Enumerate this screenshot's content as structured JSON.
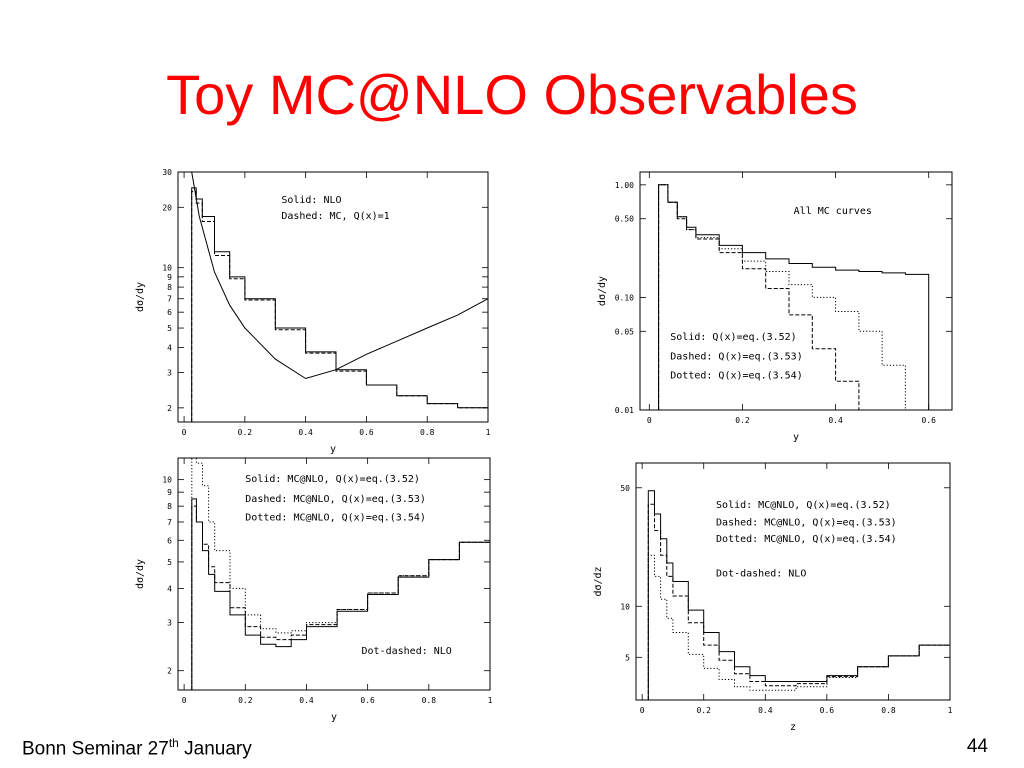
{
  "slide": {
    "title": "Toy MC@NLO Observables",
    "footer_left_main": "Bonn Seminar 27",
    "footer_left_sup": "th",
    "footer_left_tail": " January",
    "page_number": "44",
    "title_color": "#ff0000"
  },
  "chart_data": [
    {
      "type": "line",
      "xlabel": "y",
      "ylabel": "dσ/dy",
      "xlim": [
        -0.02,
        1.0
      ],
      "ylim": [
        1.7,
        30
      ],
      "yscale": "log",
      "xticks": [
        0,
        0.2,
        0.4,
        0.6,
        0.8,
        1
      ],
      "xtick_labels": [
        "0",
        "0.2",
        "0.4",
        "0.6",
        "0.8",
        "1"
      ],
      "yticks": [
        2,
        3,
        4,
        5,
        6,
        7,
        8,
        9,
        10,
        20,
        30
      ],
      "ytick_labels": [
        "2",
        "3",
        "4",
        "5",
        "6",
        "7",
        "8",
        "9",
        "10",
        "20",
        "30"
      ],
      "annotations": [
        "Solid: NLO",
        "Dashed: MC, Q(x)=1"
      ],
      "annotation_x": 0.32,
      "annotation_y": 21,
      "series": [
        {
          "style": "solid",
          "x": [
            0.025,
            0.05,
            0.1,
            0.15,
            0.2,
            0.3,
            0.4,
            0.5,
            0.6,
            0.7,
            0.8,
            0.9,
            1.0
          ],
          "y": [
            30,
            18,
            9.5,
            6.5,
            5.0,
            3.5,
            2.8,
            3.1,
            3.7,
            4.3,
            5.0,
            5.8,
            7.0
          ]
        },
        {
          "style": "step",
          "x": [
            0.025,
            0.04,
            0.06,
            0.1,
            0.15,
            0.2,
            0.3,
            0.4,
            0.5,
            0.6,
            0.7,
            0.8,
            0.9,
            1.0
          ],
          "y": [
            25,
            22,
            18,
            12,
            9.0,
            7.0,
            5.0,
            3.8,
            3.1,
            2.6,
            2.3,
            2.1,
            2.0,
            1.9
          ]
        },
        {
          "style": "step-dashed",
          "x": [
            0.025,
            0.04,
            0.06,
            0.1,
            0.15,
            0.2,
            0.3,
            0.4,
            0.5,
            0.6,
            0.7,
            0.8,
            0.9,
            1.0
          ],
          "y": [
            24,
            21,
            17,
            11.5,
            8.8,
            6.9,
            4.9,
            3.75,
            3.05,
            2.6,
            2.3,
            2.1,
            2.0,
            1.9
          ]
        }
      ]
    },
    {
      "type": "line",
      "xlabel": "y",
      "ylabel": "dσ/dy",
      "xlim": [
        -0.02,
        0.65
      ],
      "ylim": [
        0.01,
        1.3
      ],
      "yscale": "log",
      "xticks": [
        0,
        0.2,
        0.4,
        0.6
      ],
      "xtick_labels": [
        "0",
        "0.2",
        "0.4",
        "0.6"
      ],
      "yticks": [
        0.01,
        0.05,
        0.1,
        0.5,
        1.0
      ],
      "ytick_labels": [
        "0.01",
        "0.05",
        "0.10",
        "0.50",
        "1.00"
      ],
      "annotations": [
        "All MC curves",
        "Solid: Q(x)=eq.(3.52)",
        "Dashed: Q(x)=eq.(3.53)",
        "Dotted: Q(x)=eq.(3.54)"
      ],
      "annotation_positions": [
        [
          0.31,
          0.55
        ],
        [
          0.045,
          0.042
        ],
        [
          0.045,
          0.028
        ],
        [
          0.045,
          0.019
        ]
      ],
      "series": [
        {
          "style": "step",
          "x": [
            0.02,
            0.04,
            0.06,
            0.08,
            0.1,
            0.15,
            0.2,
            0.25,
            0.3,
            0.35,
            0.4,
            0.45,
            0.5,
            0.55,
            0.6
          ],
          "y": [
            1.0,
            0.7,
            0.52,
            0.42,
            0.36,
            0.29,
            0.25,
            0.22,
            0.2,
            0.185,
            0.175,
            0.17,
            0.165,
            0.16,
            0.01
          ]
        },
        {
          "style": "step-dashed",
          "x": [
            0.02,
            0.04,
            0.06,
            0.08,
            0.1,
            0.15,
            0.2,
            0.25,
            0.3,
            0.35,
            0.4,
            0.45,
            0.5
          ],
          "y": [
            1.0,
            0.7,
            0.5,
            0.4,
            0.33,
            0.25,
            0.18,
            0.12,
            0.07,
            0.035,
            0.018,
            0.01,
            0.01
          ]
        },
        {
          "style": "step-dotted",
          "x": [
            0.02,
            0.04,
            0.06,
            0.08,
            0.1,
            0.15,
            0.2,
            0.25,
            0.3,
            0.35,
            0.4,
            0.45,
            0.5,
            0.55
          ],
          "y": [
            1.0,
            0.7,
            0.52,
            0.4,
            0.34,
            0.27,
            0.21,
            0.17,
            0.13,
            0.1,
            0.075,
            0.05,
            0.025,
            0.01
          ]
        }
      ]
    },
    {
      "type": "line",
      "xlabel": "y",
      "ylabel": "dσ/dy",
      "xlim": [
        -0.02,
        1.0
      ],
      "ylim": [
        1.7,
        12
      ],
      "yscale": "log",
      "xticks": [
        0,
        0.2,
        0.4,
        0.6,
        0.8,
        1
      ],
      "xtick_labels": [
        "0",
        "0.2",
        "0.4",
        "0.6",
        "0.8",
        "1"
      ],
      "yticks": [
        2,
        3,
        4,
        5,
        6,
        7,
        8,
        9,
        10
      ],
      "ytick_labels": [
        "2",
        "3",
        "4",
        "5",
        "6",
        "7",
        "8",
        "9",
        "10"
      ],
      "annotations": [
        "Solid: MC@NLO, Q(x)=eq.(3.52)",
        "Dashed: MC@NLO, Q(x)=eq.(3.53)",
        "Dotted: MC@NLO, Q(x)=eq.(3.54)",
        "Dot-dashed: NLO"
      ],
      "annotation_positions": [
        [
          0.2,
          9.8
        ],
        [
          0.2,
          8.3
        ],
        [
          0.2,
          7.1
        ],
        [
          0.58,
          2.3
        ]
      ],
      "series": [
        {
          "style": "step",
          "x": [
            0.025,
            0.04,
            0.06,
            0.08,
            0.1,
            0.15,
            0.2,
            0.25,
            0.3,
            0.35,
            0.4,
            0.5,
            0.6,
            0.7,
            0.8,
            0.9,
            1.0
          ],
          "y": [
            8.5,
            7.0,
            5.5,
            4.5,
            3.9,
            3.2,
            2.7,
            2.5,
            2.45,
            2.6,
            2.9,
            3.3,
            3.8,
            4.4,
            5.1,
            5.9,
            6.8
          ]
        },
        {
          "style": "step-dashed",
          "x": [
            0.025,
            0.04,
            0.06,
            0.08,
            0.1,
            0.15,
            0.2,
            0.25,
            0.3,
            0.35,
            0.4,
            0.5,
            0.6,
            0.7,
            0.8,
            0.9,
            1.0
          ],
          "y": [
            8.0,
            7.0,
            5.8,
            4.8,
            4.2,
            3.4,
            2.9,
            2.65,
            2.6,
            2.7,
            2.95,
            3.35,
            3.85,
            4.45,
            5.1,
            5.9,
            6.8
          ]
        },
        {
          "style": "step-dotted",
          "x": [
            0.025,
            0.04,
            0.06,
            0.08,
            0.1,
            0.15,
            0.2,
            0.25,
            0.3,
            0.35,
            0.4,
            0.5,
            0.6,
            0.7,
            0.8,
            0.9,
            1.0
          ],
          "y": [
            12,
            11.5,
            9.5,
            7.0,
            5.5,
            4.0,
            3.2,
            2.85,
            2.75,
            2.8,
            3.0,
            3.35,
            3.85,
            4.45,
            5.1,
            5.9,
            6.8
          ]
        }
      ]
    },
    {
      "type": "line",
      "xlabel": "z",
      "ylabel": "dσ/dz",
      "xlim": [
        -0.02,
        1.0
      ],
      "ylim": [
        2.8,
        70
      ],
      "yscale": "log",
      "xticks": [
        0,
        0.2,
        0.4,
        0.6,
        0.8,
        1
      ],
      "xtick_labels": [
        "0",
        "0.2",
        "0.4",
        "0.6",
        "0.8",
        "1"
      ],
      "yticks": [
        5,
        10,
        50
      ],
      "ytick_labels": [
        "5",
        "10",
        "50"
      ],
      "annotations": [
        "Solid: MC@NLO, Q(x)=eq.(3.52)",
        "Dashed: MC@NLO, Q(x)=eq.(3.53)",
        "Dotted: MC@NLO, Q(x)=eq.(3.54)",
        "Dot-dashed: NLO"
      ],
      "annotation_positions": [
        [
          0.24,
          38
        ],
        [
          0.24,
          30
        ],
        [
          0.24,
          24
        ],
        [
          0.24,
          15
        ]
      ],
      "series": [
        {
          "style": "step",
          "x": [
            0.02,
            0.04,
            0.06,
            0.08,
            0.1,
            0.15,
            0.2,
            0.25,
            0.3,
            0.35,
            0.4,
            0.5,
            0.6,
            0.7,
            0.8,
            0.9,
            1.0
          ],
          "y": [
            48,
            35,
            25,
            18,
            14,
            9.5,
            7.0,
            5.4,
            4.4,
            3.9,
            3.6,
            3.6,
            3.9,
            4.4,
            5.1,
            5.9,
            6.9
          ]
        },
        {
          "style": "step-dashed",
          "x": [
            0.02,
            0.04,
            0.06,
            0.08,
            0.1,
            0.15,
            0.2,
            0.25,
            0.3,
            0.35,
            0.4,
            0.5,
            0.6,
            0.7,
            0.8,
            0.9,
            1.0
          ],
          "y": [
            40,
            28,
            20,
            15,
            11.5,
            8.0,
            5.9,
            4.8,
            4.0,
            3.6,
            3.4,
            3.5,
            3.85,
            4.4,
            5.1,
            5.9,
            6.9
          ]
        },
        {
          "style": "step-dotted",
          "x": [
            0.02,
            0.04,
            0.06,
            0.08,
            0.1,
            0.15,
            0.2,
            0.25,
            0.3,
            0.35,
            0.4,
            0.5,
            0.6,
            0.7,
            0.8,
            0.9,
            1.0
          ],
          "y": [
            20,
            15,
            11,
            8.5,
            7.0,
            5.2,
            4.3,
            3.7,
            3.35,
            3.2,
            3.2,
            3.35,
            3.8,
            4.4,
            5.1,
            5.9,
            6.9
          ]
        }
      ]
    }
  ]
}
